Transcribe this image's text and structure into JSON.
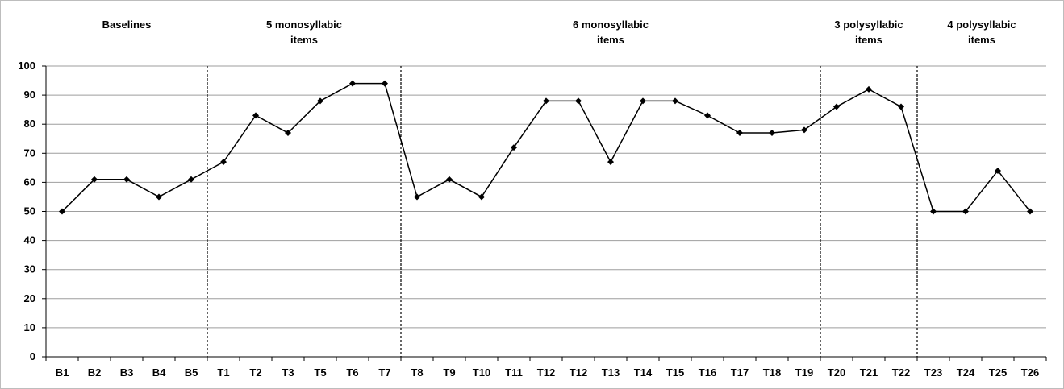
{
  "chart_data": {
    "type": "line",
    "title": "",
    "xlabel": "",
    "ylabel": "",
    "ylim": [
      0,
      100
    ],
    "y_ticks": [
      0,
      10,
      20,
      30,
      40,
      50,
      60,
      70,
      80,
      90,
      100
    ],
    "grid": true,
    "legend": "none",
    "categories": [
      "B1",
      "B2",
      "B3",
      "B4",
      "B5",
      "T1",
      "T2",
      "T3",
      "T5",
      "T6",
      "T7",
      "T8",
      "T9",
      "T10",
      "T11",
      "T12",
      "T12",
      "T13",
      "T14",
      "T15",
      "T16",
      "T17",
      "T18",
      "T19",
      "T20",
      "T21",
      "T22",
      "T23",
      "T24",
      "T25",
      "T26"
    ],
    "series": [
      {
        "values": [
          50,
          61,
          61,
          55,
          61,
          67,
          83,
          77,
          88,
          94,
          94,
          55,
          61,
          55,
          72,
          88,
          88,
          67,
          88,
          88,
          83,
          77,
          77,
          78,
          86,
          92,
          86,
          50,
          50,
          64,
          50
        ]
      }
    ],
    "phases": [
      {
        "label_lines": [
          "Baselines"
        ],
        "start_index": 0,
        "end_index": 4
      },
      {
        "label_lines": [
          "5 monosyllabic",
          "items"
        ],
        "start_index": 5,
        "end_index": 10
      },
      {
        "label_lines": [
          "6 monosyllabic",
          "items"
        ],
        "start_index": 11,
        "end_index": 23
      },
      {
        "label_lines": [
          "3 polysyllabic",
          "items"
        ],
        "start_index": 24,
        "end_index": 26
      },
      {
        "label_lines": [
          "4 polysyllabic",
          "items"
        ],
        "start_index": 27,
        "end_index": 30
      }
    ],
    "phase_divider_after_index": [
      4,
      10,
      23,
      26
    ]
  },
  "colors": {
    "line": "#000000",
    "marker": "#000000",
    "grid": "#9e9e9e",
    "axis": "#000000",
    "divider": "#000000",
    "frame": "#bdbdbd"
  }
}
